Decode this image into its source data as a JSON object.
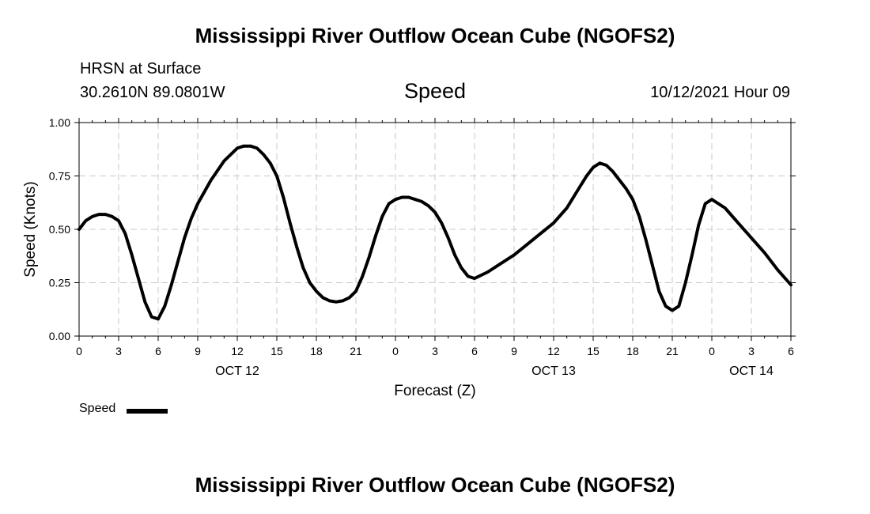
{
  "header": {
    "title": "Mississippi River Outflow Ocean Cube (NGOFS2)",
    "station": "HRSN at Surface",
    "coordinates": "30.2610N  89.0801W",
    "chart_title": "Speed",
    "datetime": "10/12/2021 Hour 09"
  },
  "footer": {
    "title": "Mississippi River Outflow Ocean Cube (NGOFS2)"
  },
  "legend": {
    "label": "Speed"
  },
  "chart_data": {
    "type": "line",
    "title": "Speed",
    "xlabel": "Forecast (Z)",
    "ylabel": "Speed (Knots)",
    "xlim": [
      0,
      54
    ],
    "ylim": [
      0,
      1
    ],
    "y_ticks": [
      "0.00",
      "0.25",
      "0.50",
      "0.75",
      "1.00"
    ],
    "x_ticks": [
      {
        "hour": 0,
        "label": "0"
      },
      {
        "hour": 3,
        "label": "3"
      },
      {
        "hour": 6,
        "label": "6"
      },
      {
        "hour": 9,
        "label": "9"
      },
      {
        "hour": 12,
        "label": "12"
      },
      {
        "hour": 15,
        "label": "15"
      },
      {
        "hour": 18,
        "label": "18"
      },
      {
        "hour": 21,
        "label": "21"
      },
      {
        "hour": 24,
        "label": "0"
      },
      {
        "hour": 27,
        "label": "3"
      },
      {
        "hour": 30,
        "label": "6"
      },
      {
        "hour": 33,
        "label": "9"
      },
      {
        "hour": 36,
        "label": "12"
      },
      {
        "hour": 39,
        "label": "15"
      },
      {
        "hour": 42,
        "label": "18"
      },
      {
        "hour": 45,
        "label": "21"
      },
      {
        "hour": 48,
        "label": "0"
      },
      {
        "hour": 51,
        "label": "3"
      },
      {
        "hour": 54,
        "label": "6"
      }
    ],
    "date_labels": [
      {
        "hour": 12,
        "label": "OCT 12"
      },
      {
        "hour": 36,
        "label": "OCT 13"
      },
      {
        "hour": 51,
        "label": "OCT 14"
      }
    ],
    "grid": true,
    "series": [
      {
        "name": "Speed",
        "color": "#000000",
        "x": [
          0,
          0.5,
          1,
          1.5,
          2,
          2.5,
          3,
          3.5,
          4,
          4.5,
          5,
          5.5,
          6,
          6.5,
          7,
          7.5,
          8,
          8.5,
          9,
          10,
          11,
          12,
          12.5,
          13,
          13.5,
          14,
          14.5,
          15,
          15.5,
          16,
          16.5,
          17,
          17.5,
          18,
          18.5,
          19,
          19.5,
          20,
          20.5,
          21,
          21.5,
          22,
          22.5,
          23,
          23.5,
          24,
          24.5,
          25,
          25.5,
          26,
          26.5,
          27,
          27.5,
          28,
          28.5,
          29,
          29.5,
          30,
          31,
          32,
          33,
          34,
          35,
          36,
          37,
          38,
          38.5,
          39,
          39.5,
          40,
          40.5,
          41,
          41.5,
          42,
          42.5,
          43,
          43.5,
          44,
          44.5,
          45,
          45.5,
          46,
          46.5,
          47,
          47.5,
          48,
          49,
          50,
          51,
          52,
          53,
          54
        ],
        "values": [
          0.5,
          0.54,
          0.56,
          0.57,
          0.57,
          0.56,
          0.54,
          0.48,
          0.38,
          0.27,
          0.16,
          0.09,
          0.08,
          0.14,
          0.24,
          0.35,
          0.46,
          0.55,
          0.62,
          0.73,
          0.82,
          0.88,
          0.89,
          0.89,
          0.88,
          0.85,
          0.81,
          0.75,
          0.65,
          0.53,
          0.42,
          0.32,
          0.25,
          0.21,
          0.18,
          0.165,
          0.16,
          0.165,
          0.18,
          0.21,
          0.28,
          0.37,
          0.47,
          0.56,
          0.62,
          0.64,
          0.65,
          0.65,
          0.64,
          0.63,
          0.61,
          0.58,
          0.53,
          0.46,
          0.38,
          0.32,
          0.28,
          0.27,
          0.3,
          0.34,
          0.38,
          0.43,
          0.48,
          0.53,
          0.6,
          0.7,
          0.75,
          0.79,
          0.81,
          0.8,
          0.77,
          0.73,
          0.69,
          0.64,
          0.56,
          0.45,
          0.33,
          0.21,
          0.14,
          0.12,
          0.14,
          0.25,
          0.38,
          0.52,
          0.62,
          0.64,
          0.6,
          0.53,
          0.46,
          0.39,
          0.31,
          0.24
        ]
      }
    ]
  }
}
